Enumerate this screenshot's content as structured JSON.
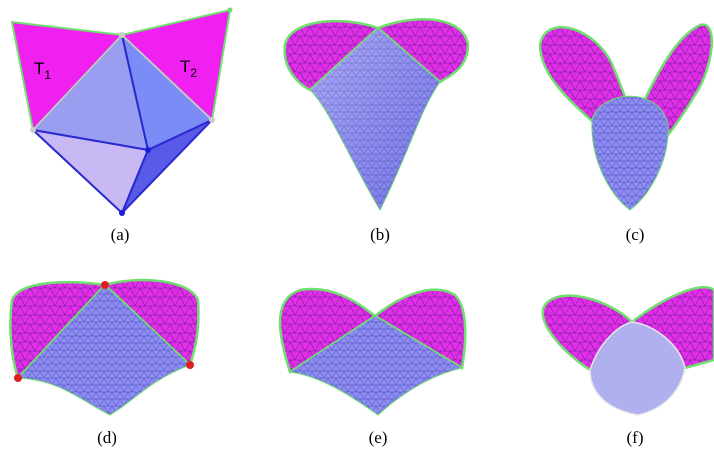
{
  "panel_a": {
    "labels": [
      {
        "text": "T",
        "subscript": "1"
      },
      {
        "text": "T",
        "subscript": "2"
      }
    ]
  },
  "captions": [
    "(a)",
    "(b)",
    "(c)",
    "(d)",
    "(e)",
    "(f)"
  ]
}
